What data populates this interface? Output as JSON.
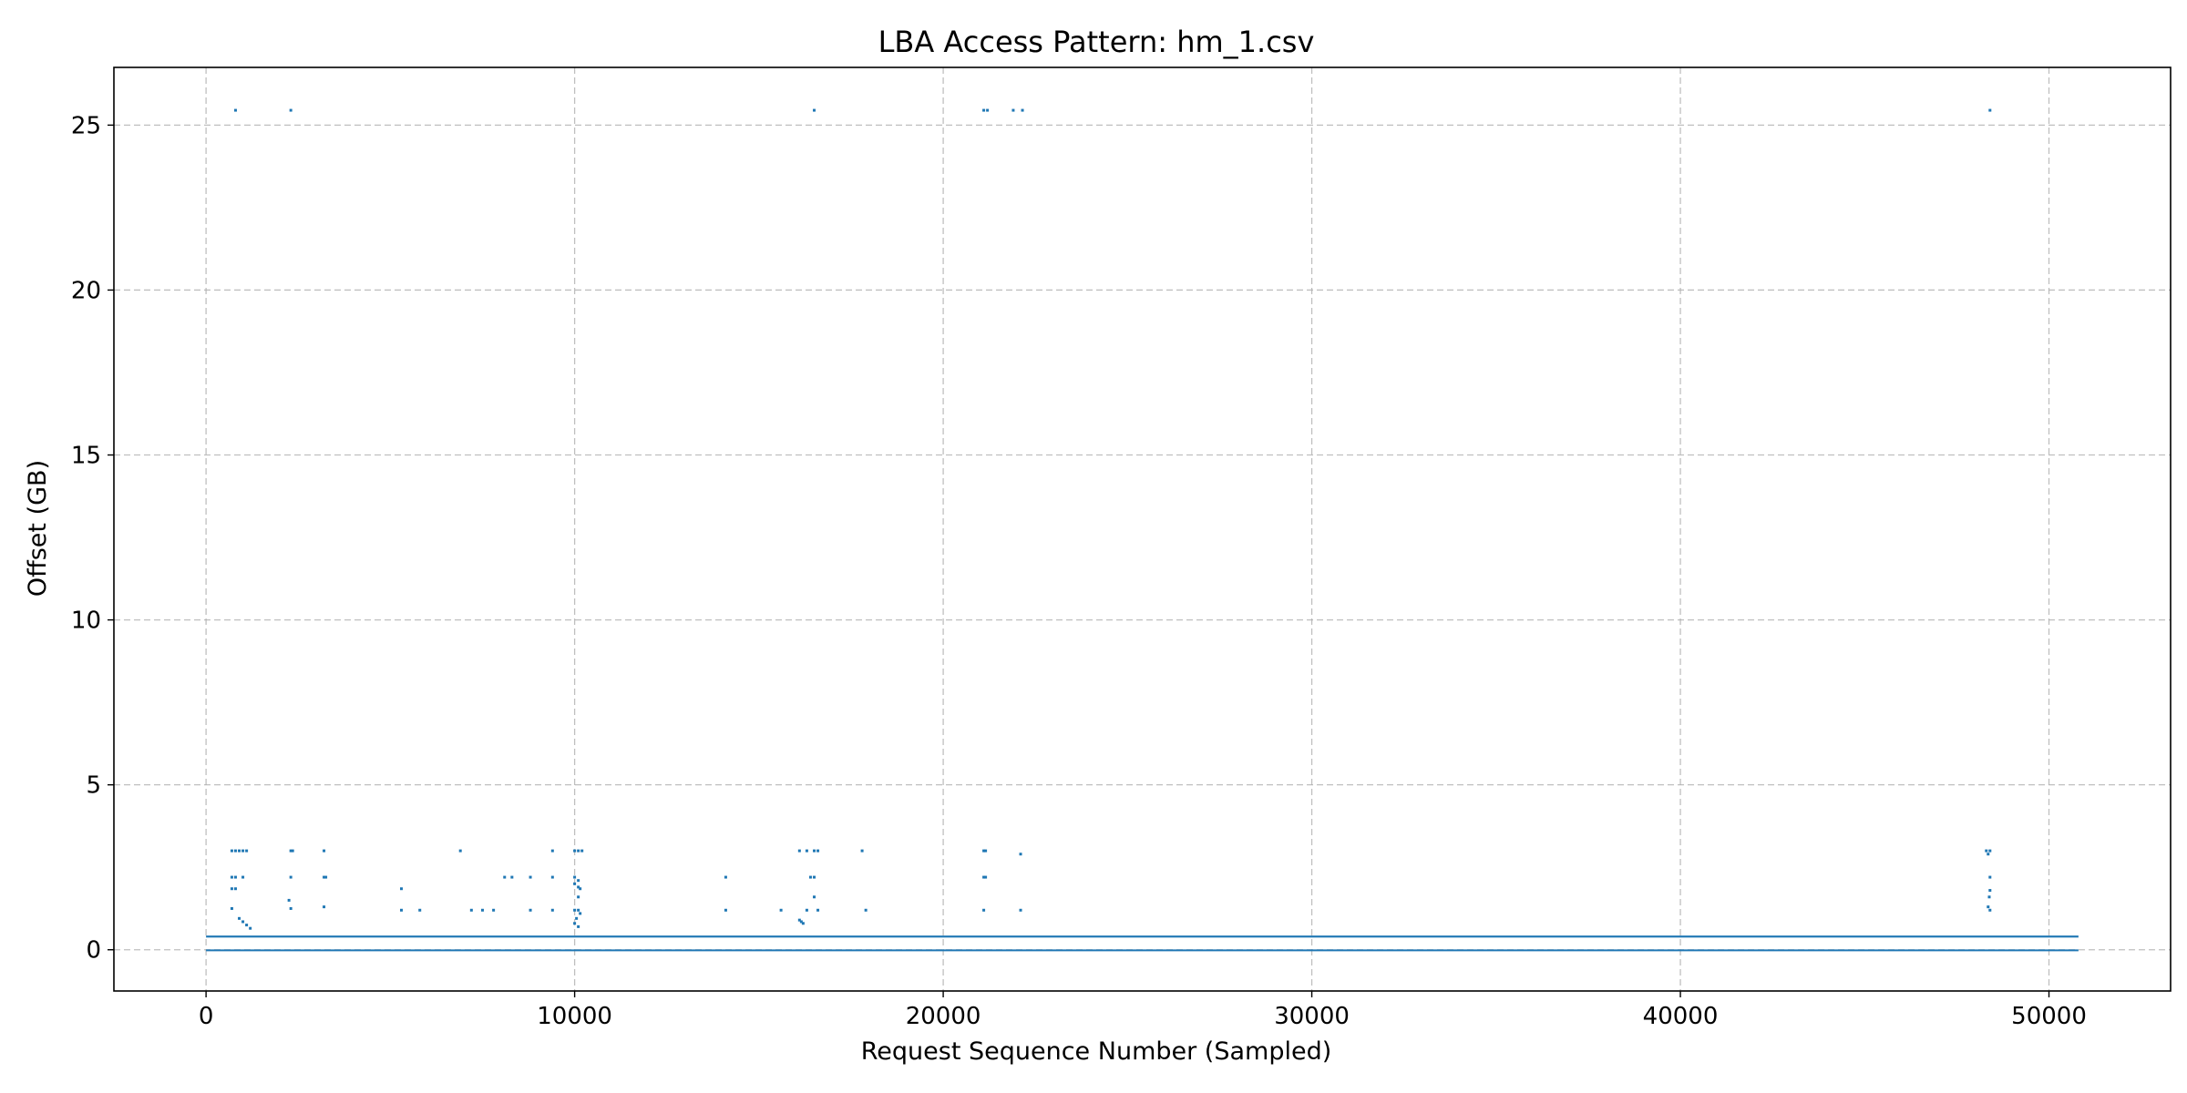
{
  "chart_data": {
    "type": "scatter",
    "title": "LBA Access Pattern: hm_1.csv",
    "xlabel": "Request Sequence Number (Sampled)",
    "ylabel": "Offset (GB)",
    "xlim": [
      -2500,
      53300
    ],
    "ylim": [
      -1.25,
      26.75
    ],
    "xticks": [
      0,
      10000,
      20000,
      30000,
      40000,
      50000
    ],
    "yticks": [
      0,
      5,
      10,
      15,
      20,
      25
    ],
    "grid": true,
    "grid_style": "dashed",
    "color": "#1f77b4",
    "x_max": 50800,
    "bands": [
      {
        "y_low": 0.37,
        "y_high": 0.43,
        "x_from": 0,
        "x_to": 50800
      },
      {
        "y_low": 0.0,
        "y_high": 0.01,
        "x_from": 0,
        "x_to": 50800
      }
    ],
    "points": [
      [
        800,
        25.45
      ],
      [
        2300,
        25.45
      ],
      [
        16500,
        25.45
      ],
      [
        21100,
        25.45
      ],
      [
        21200,
        25.45
      ],
      [
        21900,
        25.45
      ],
      [
        22150,
        25.45
      ],
      [
        48400,
        25.45
      ],
      [
        700,
        3.0
      ],
      [
        800,
        3.0
      ],
      [
        900,
        3.0
      ],
      [
        1000,
        3.0
      ],
      [
        1100,
        3.0
      ],
      [
        2300,
        3.0
      ],
      [
        2350,
        3.0
      ],
      [
        3200,
        3.0
      ],
      [
        6900,
        3.0
      ],
      [
        9400,
        3.0
      ],
      [
        10000,
        3.0
      ],
      [
        10100,
        3.0
      ],
      [
        10200,
        3.0
      ],
      [
        16100,
        3.0
      ],
      [
        16300,
        3.0
      ],
      [
        16500,
        3.0
      ],
      [
        16600,
        3.0
      ],
      [
        17800,
        3.0
      ],
      [
        21100,
        3.0
      ],
      [
        21150,
        3.0
      ],
      [
        22100,
        2.9
      ],
      [
        48300,
        3.0
      ],
      [
        48400,
        3.0
      ],
      [
        48350,
        2.9
      ],
      [
        700,
        2.2
      ],
      [
        800,
        2.2
      ],
      [
        1000,
        2.2
      ],
      [
        2300,
        2.2
      ],
      [
        3200,
        2.2
      ],
      [
        3250,
        2.2
      ],
      [
        8100,
        2.2
      ],
      [
        8300,
        2.2
      ],
      [
        8800,
        2.2
      ],
      [
        9400,
        2.2
      ],
      [
        10000,
        2.2
      ],
      [
        10100,
        2.1
      ],
      [
        14100,
        2.2
      ],
      [
        16400,
        2.2
      ],
      [
        16500,
        2.2
      ],
      [
        21100,
        2.2
      ],
      [
        21150,
        2.2
      ],
      [
        48400,
        2.2
      ],
      [
        700,
        1.85
      ],
      [
        800,
        1.85
      ],
      [
        5300,
        1.85
      ],
      [
        10000,
        2.0
      ],
      [
        10100,
        1.9
      ],
      [
        10150,
        1.85
      ],
      [
        10100,
        1.6
      ],
      [
        16500,
        1.6
      ],
      [
        48400,
        1.8
      ],
      [
        48380,
        1.6
      ],
      [
        2250,
        1.5
      ],
      [
        700,
        1.25
      ],
      [
        2300,
        1.25
      ],
      [
        3200,
        1.3
      ],
      [
        5300,
        1.2
      ],
      [
        5800,
        1.2
      ],
      [
        7200,
        1.2
      ],
      [
        7500,
        1.2
      ],
      [
        7800,
        1.2
      ],
      [
        8800,
        1.2
      ],
      [
        9400,
        1.2
      ],
      [
        10000,
        1.2
      ],
      [
        10100,
        1.2
      ],
      [
        10150,
        1.1
      ],
      [
        14100,
        1.2
      ],
      [
        15600,
        1.2
      ],
      [
        16300,
        1.2
      ],
      [
        16600,
        1.2
      ],
      [
        17900,
        1.2
      ],
      [
        21100,
        1.2
      ],
      [
        22100,
        1.2
      ],
      [
        48400,
        1.2
      ],
      [
        48350,
        1.3
      ],
      [
        900,
        0.95
      ],
      [
        1000,
        0.85
      ],
      [
        1100,
        0.75
      ],
      [
        10050,
        0.95
      ],
      [
        10000,
        0.8
      ],
      [
        16100,
        0.9
      ],
      [
        16150,
        0.85
      ],
      [
        16200,
        0.8
      ],
      [
        1200,
        0.65
      ],
      [
        10100,
        0.7
      ]
    ]
  }
}
